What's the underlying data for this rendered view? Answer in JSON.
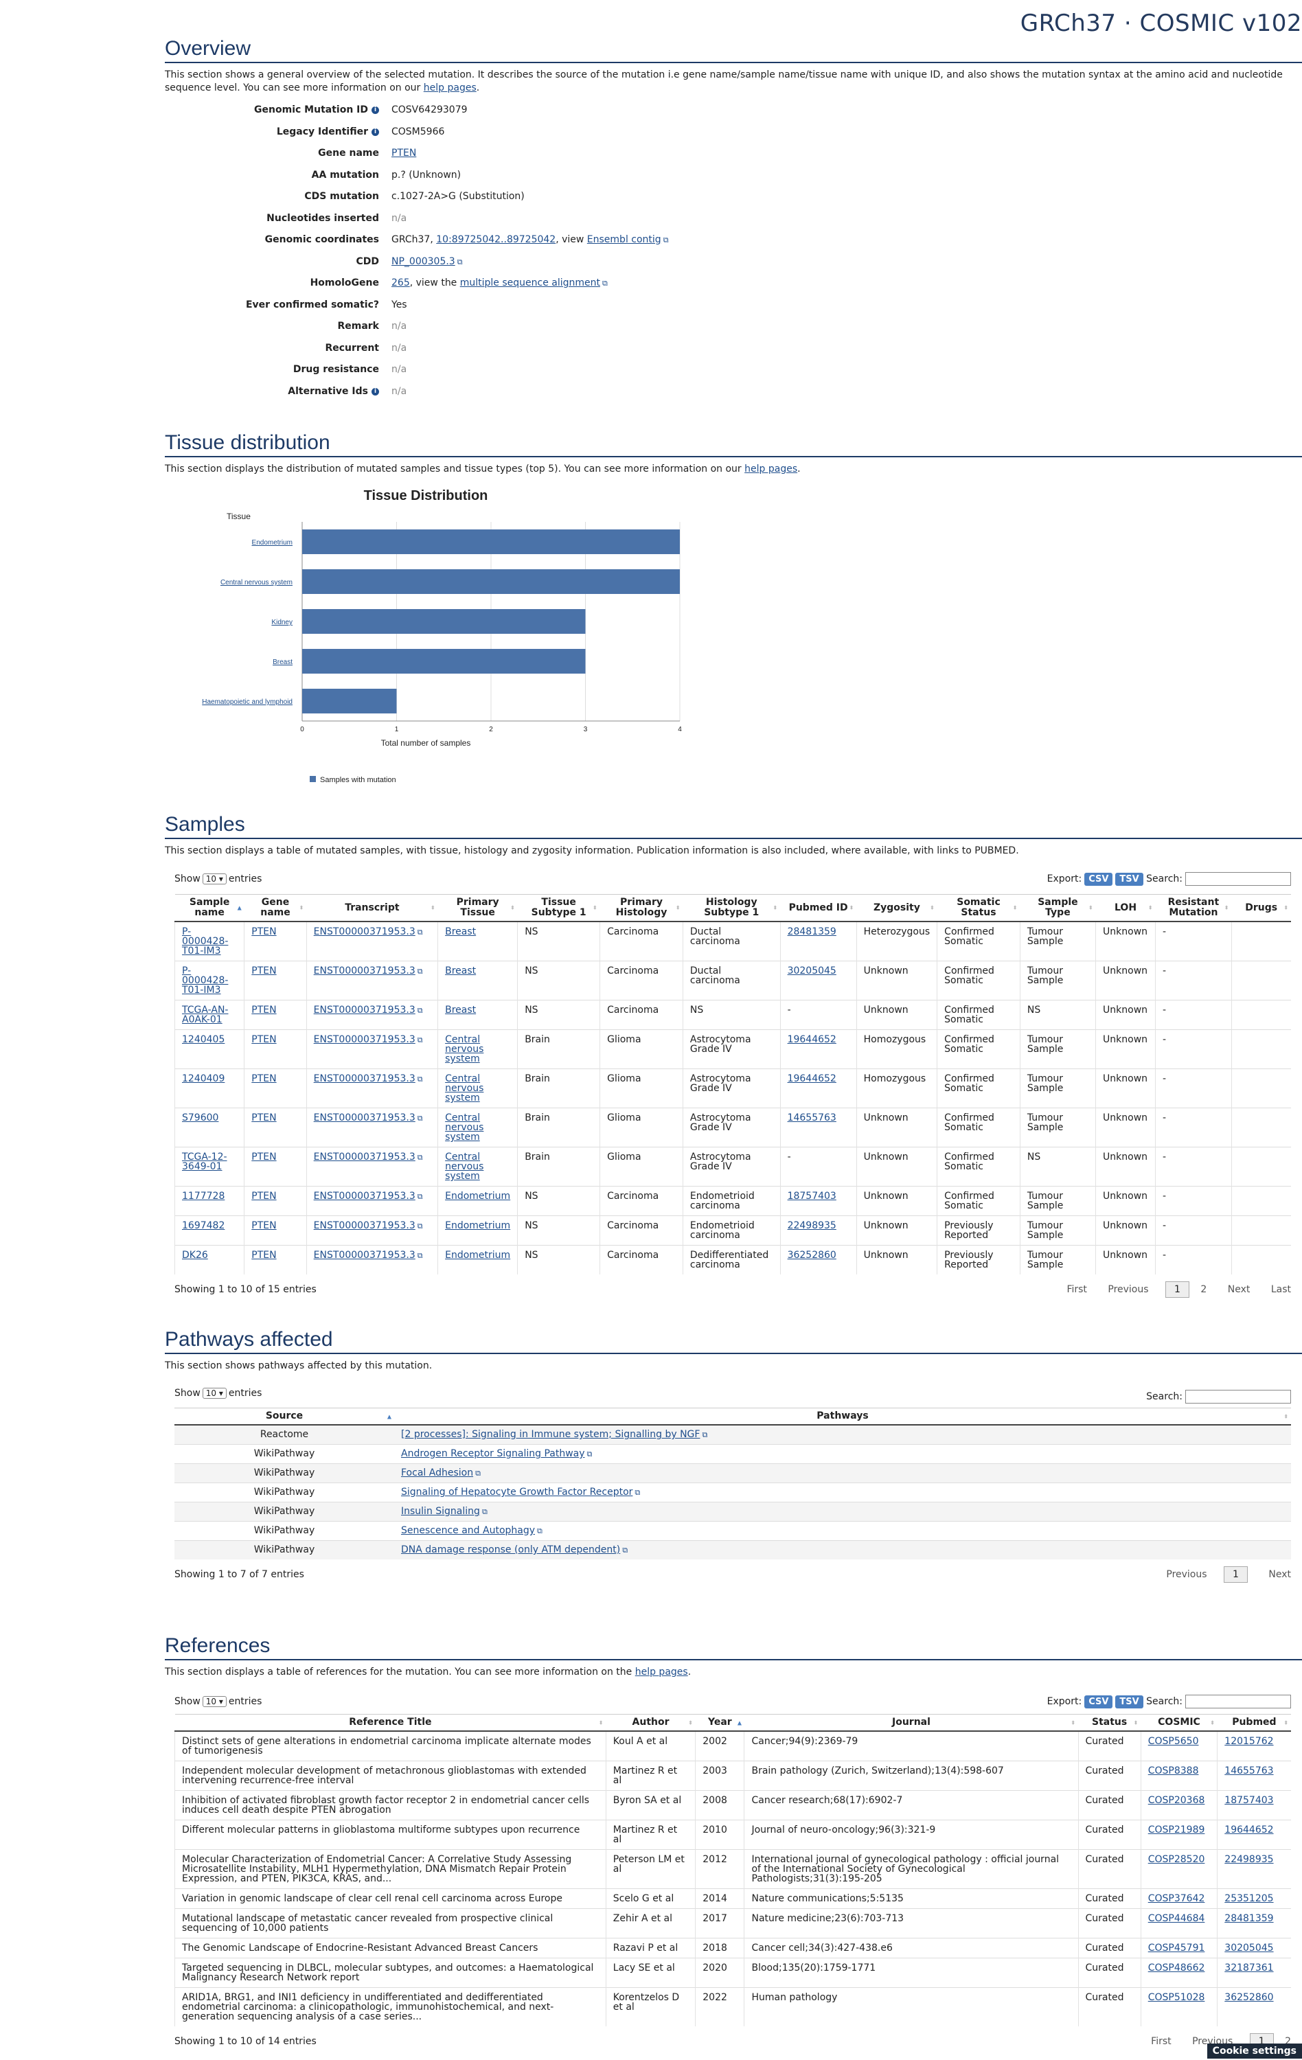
{
  "header": {
    "title": "GRCh37 · COSMIC v102"
  },
  "overview": {
    "title": "Overview",
    "desc_pre": "This section shows a general overview of the selected mutation. It describes the source of the mutation i.e gene name/sample name/tissue name with unique ID, and also shows the mutation syntax at the amino acid and nucleotide sequence level. You can see more information on our ",
    "desc_link": "help pages",
    "desc_post": ".",
    "rows": [
      {
        "label": "Genomic Mutation ID",
        "value": "COSV64293079"
      },
      {
        "label": "Legacy Identifier",
        "value": "COSM5966"
      },
      {
        "label": "Gene name",
        "value": "PTEN"
      },
      {
        "label": "AA mutation",
        "value": "p.? (Unknown)"
      },
      {
        "label": "CDS mutation",
        "value": "c.1027-2A>G (Substitution)"
      },
      {
        "label": "Nucleotides inserted",
        "value": "n/a"
      },
      {
        "label": "Genomic coordinates",
        "value_pre": "GRCh37, ",
        "link1": "10:89725042..89725042",
        "mid": ", view ",
        "link2": "Ensembl contig"
      },
      {
        "label": "CDD",
        "value": "NP_000305.3"
      },
      {
        "label": "HomoloGene",
        "link1": "265",
        "mid": ", view the ",
        "link2": "multiple sequence alignment"
      },
      {
        "label": "Ever confirmed somatic?",
        "value": "Yes"
      },
      {
        "label": "Remark",
        "value": "n/a"
      },
      {
        "label": "Recurrent",
        "value": "n/a"
      },
      {
        "label": "Drug resistance",
        "value": "n/a"
      },
      {
        "label": "Alternative Ids",
        "value": "n/a"
      }
    ]
  },
  "tissue": {
    "title": "Tissue distribution",
    "desc_pre": "This section displays the distribution of mutated samples and tissue types (top 5). You can see more information on our ",
    "desc_link": "help pages",
    "desc_post": "."
  },
  "chart_data": {
    "type": "bar",
    "orientation": "horizontal",
    "title": "Tissue Distribution",
    "ylabel": "Tissue",
    "xlabel": "Total number of samples",
    "categories": [
      "Endometrium",
      "Central nervous system",
      "Kidney",
      "Breast",
      "Haematopoietic and lymphoid"
    ],
    "series": [
      {
        "name": "Samples with mutation",
        "values": [
          4,
          4,
          3,
          3,
          1
        ],
        "color": "#4a72a8"
      }
    ],
    "xlim": [
      0,
      4
    ],
    "xticks": [
      "0",
      "1",
      "2",
      "3",
      "4"
    ],
    "grid": true,
    "legend": "bottom-left"
  },
  "samples": {
    "title": "Samples",
    "desc": "This section displays a table of mutated samples, with tissue, histology and zygosity information. Publication information is also included, where available, with links to PUBMED.",
    "show": "Show",
    "entries_sel": "10",
    "entries": "entries",
    "export": "Export:",
    "csv": "CSV",
    "tsv": "TSV",
    "search": "Search:",
    "columns": [
      "Sample name",
      "Gene name",
      "Transcript",
      "Primary Tissue",
      "Tissue Subtype 1",
      "Primary Histology",
      "Histology Subtype 1",
      "Pubmed ID",
      "Zygosity",
      "Somatic Status",
      "Sample Type",
      "LOH",
      "Resistant Mutation",
      "Drugs"
    ],
    "rows": [
      [
        "P-0000428-T01-IM3",
        "PTEN",
        "ENST00000371953.3",
        "Breast",
        "NS",
        "Carcinoma",
        "Ductal carcinoma",
        "28481359",
        "Heterozygous",
        "Confirmed Somatic",
        "Tumour Sample",
        "Unknown",
        "-",
        ""
      ],
      [
        "P-0000428-T01-IM3",
        "PTEN",
        "ENST00000371953.3",
        "Breast",
        "NS",
        "Carcinoma",
        "Ductal carcinoma",
        "30205045",
        "Unknown",
        "Confirmed Somatic",
        "Tumour Sample",
        "Unknown",
        "-",
        ""
      ],
      [
        "TCGA-AN-A0AK-01",
        "PTEN",
        "ENST00000371953.3",
        "Breast",
        "NS",
        "Carcinoma",
        "NS",
        "-",
        "Unknown",
        "Confirmed Somatic",
        "NS",
        "Unknown",
        "-",
        ""
      ],
      [
        "1240405",
        "PTEN",
        "ENST00000371953.3",
        "Central nervous system",
        "Brain",
        "Glioma",
        "Astrocytoma Grade IV",
        "19644652",
        "Homozygous",
        "Confirmed Somatic",
        "Tumour Sample",
        "Unknown",
        "-",
        ""
      ],
      [
        "1240409",
        "PTEN",
        "ENST00000371953.3",
        "Central nervous system",
        "Brain",
        "Glioma",
        "Astrocytoma Grade IV",
        "19644652",
        "Homozygous",
        "Confirmed Somatic",
        "Tumour Sample",
        "Unknown",
        "-",
        ""
      ],
      [
        "S79600",
        "PTEN",
        "ENST00000371953.3",
        "Central nervous system",
        "Brain",
        "Glioma",
        "Astrocytoma Grade IV",
        "14655763",
        "Unknown",
        "Confirmed Somatic",
        "Tumour Sample",
        "Unknown",
        "-",
        ""
      ],
      [
        "TCGA-12-3649-01",
        "PTEN",
        "ENST00000371953.3",
        "Central nervous system",
        "Brain",
        "Glioma",
        "Astrocytoma Grade IV",
        "-",
        "Unknown",
        "Confirmed Somatic",
        "NS",
        "Unknown",
        "-",
        ""
      ],
      [
        "1177728",
        "PTEN",
        "ENST00000371953.3",
        "Endometrium",
        "NS",
        "Carcinoma",
        "Endometrioid carcinoma",
        "18757403",
        "Unknown",
        "Confirmed Somatic",
        "Tumour Sample",
        "Unknown",
        "-",
        ""
      ],
      [
        "1697482",
        "PTEN",
        "ENST00000371953.3",
        "Endometrium",
        "NS",
        "Carcinoma",
        "Endometrioid carcinoma",
        "22498935",
        "Unknown",
        "Previously Reported",
        "Tumour Sample",
        "Unknown",
        "-",
        ""
      ],
      [
        "DK26",
        "PTEN",
        "ENST00000371953.3",
        "Endometrium",
        "NS",
        "Carcinoma",
        "Dedifferentiated carcinoma",
        "36252860",
        "Unknown",
        "Previously Reported",
        "Tumour Sample",
        "Unknown",
        "-",
        ""
      ]
    ],
    "info": "Showing 1 to 10 of 15 entries",
    "pager": {
      "first": "First",
      "prev": "Previous",
      "cur": "1",
      "p2": "2",
      "next": "Next",
      "last": "Last"
    }
  },
  "pathways": {
    "title": "Pathways affected",
    "desc": "This section shows pathways affected by this mutation.",
    "show": "Show",
    "entries_sel": "10",
    "entries": "entries",
    "search": "Search:",
    "columns": [
      "Source",
      "Pathways"
    ],
    "rows": [
      [
        "Reactome",
        "[2 processes]: Signaling in Immune system; Signalling by NGF"
      ],
      [
        "WikiPathway",
        "Androgen Receptor Signaling Pathway"
      ],
      [
        "WikiPathway",
        "Focal Adhesion"
      ],
      [
        "WikiPathway",
        "Signaling of Hepatocyte Growth Factor Receptor"
      ],
      [
        "WikiPathway",
        "Insulin Signaling"
      ],
      [
        "WikiPathway",
        "Senescence and Autophagy"
      ],
      [
        "WikiPathway",
        "DNA damage response (only ATM dependent)"
      ]
    ],
    "info": "Showing 1 to 7 of 7 entries",
    "pager": {
      "prev": "Previous",
      "cur": "1",
      "next": "Next"
    }
  },
  "references": {
    "title": "References",
    "desc_pre": "This section displays a table of references for the mutation. You can see more information on the ",
    "desc_link": "help pages",
    "desc_post": ".",
    "show": "Show",
    "entries_sel": "10",
    "entries": "entries",
    "export": "Export:",
    "csv": "CSV",
    "tsv": "TSV",
    "search": "Search:",
    "columns": [
      "Reference Title",
      "Author",
      "Year",
      "Journal",
      "Status",
      "COSMIC",
      "Pubmed"
    ],
    "rows": [
      [
        "Distinct sets of gene alterations in endometrial carcinoma implicate alternate modes of tumorigenesis",
        "Koul A et al",
        "2002",
        "Cancer;94(9):2369-79",
        "Curated",
        "COSP5650",
        "12015762"
      ],
      [
        "Independent molecular development of metachronous glioblastomas with extended intervening recurrence-free interval",
        "Martinez R et al",
        "2003",
        "Brain pathology (Zurich, Switzerland);13(4):598-607",
        "Curated",
        "COSP8388",
        "14655763"
      ],
      [
        "Inhibition of activated fibroblast growth factor receptor 2 in endometrial cancer cells induces cell death despite PTEN abrogation",
        "Byron SA et al",
        "2008",
        "Cancer research;68(17):6902-7",
        "Curated",
        "COSP20368",
        "18757403"
      ],
      [
        "Different molecular patterns in glioblastoma multiforme subtypes upon recurrence",
        "Martinez R et al",
        "2010",
        "Journal of neuro-oncology;96(3):321-9",
        "Curated",
        "COSP21989",
        "19644652"
      ],
      [
        "Molecular Characterization of Endometrial Cancer: A Correlative Study Assessing Microsatellite Instability, MLH1 Hypermethylation, DNA Mismatch Repair Protein Expression, and PTEN, PIK3CA, KRAS, and...",
        "Peterson LM et al",
        "2012",
        "International journal of gynecological pathology : official journal of the International Society of Gynecological Pathologists;31(3):195-205",
        "Curated",
        "COSP28520",
        "22498935"
      ],
      [
        "Variation in genomic landscape of clear cell renal cell carcinoma across Europe",
        "Scelo G et al",
        "2014",
        "Nature communications;5:5135",
        "Curated",
        "COSP37642",
        "25351205"
      ],
      [
        "Mutational landscape of metastatic cancer revealed from prospective clinical sequencing of 10,000 patients",
        "Zehir A et al",
        "2017",
        "Nature medicine;23(6):703-713",
        "Curated",
        "COSP44684",
        "28481359"
      ],
      [
        "The Genomic Landscape of Endocrine-Resistant Advanced Breast Cancers",
        "Razavi P et al",
        "2018",
        "Cancer cell;34(3):427-438.e6",
        "Curated",
        "COSP45791",
        "30205045"
      ],
      [
        "Targeted sequencing in DLBCL, molecular subtypes, and outcomes: a Haematological Malignancy Research Network report",
        "Lacy SE et al",
        "2020",
        "Blood;135(20):1759-1771",
        "Curated",
        "COSP48662",
        "32187361"
      ],
      [
        "ARID1A, BRG1, and INI1 deficiency in undifferentiated and dedifferentiated endometrial carcinoma: a clinicopathologic, immunohistochemical, and next-generation sequencing analysis of a case series...",
        "Korentzelos D et al",
        "2022",
        "Human pathology",
        "Curated",
        "COSP51028",
        "36252860"
      ]
    ],
    "info": "Showing 1 to 10 of 14 entries",
    "pager": {
      "first": "First",
      "prev": "Previous",
      "cur": "1",
      "p2": "2"
    }
  },
  "cookie": "Cookie settings"
}
